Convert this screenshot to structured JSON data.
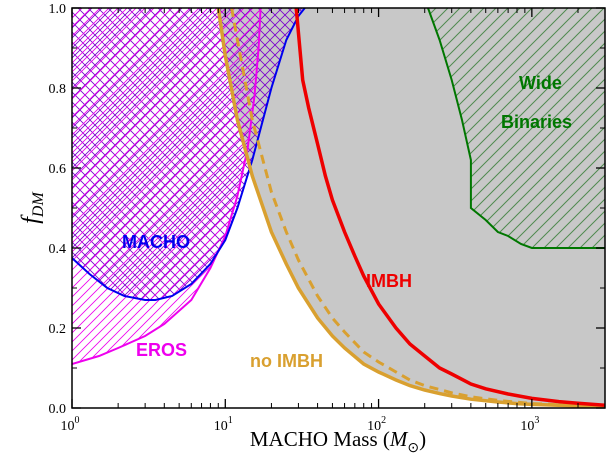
{
  "chart_data": {
    "type": "area",
    "xscale": "log",
    "xlim": [
      1,
      3000
    ],
    "ylim": [
      0,
      1.0
    ],
    "grid": false,
    "xlabel": {
      "prefix": "MACHO Mass (",
      "symbol": "M",
      "subscript": "⊙",
      "suffix": ")"
    },
    "ylabel": {
      "symbol": "f",
      "subscript": "DM"
    },
    "x_ticks": [
      {
        "value": 1,
        "base": "10",
        "exp": "0"
      },
      {
        "value": 10,
        "base": "10",
        "exp": "1"
      },
      {
        "value": 100,
        "base": "10",
        "exp": "2"
      },
      {
        "value": 1000,
        "base": "10",
        "exp": "3"
      }
    ],
    "y_ticks": [
      {
        "value": 0.0,
        "label": "0.0"
      },
      {
        "value": 0.2,
        "label": "0.2"
      },
      {
        "value": 0.4,
        "label": "0.4"
      },
      {
        "value": 0.6,
        "label": "0.6"
      },
      {
        "value": 0.8,
        "label": "0.8"
      },
      {
        "value": 1.0,
        "label": "1.0"
      }
    ],
    "series": [
      {
        "name": "MACHO",
        "color": "#0000ee",
        "style": "crosshatch",
        "x": [
          1,
          1.3,
          1.7,
          2.2,
          3,
          3.5,
          4.5,
          6,
          8,
          10,
          12,
          15,
          20,
          25,
          30,
          33
        ],
        "y": [
          0.375,
          0.335,
          0.3,
          0.28,
          0.27,
          0.27,
          0.28,
          0.31,
          0.36,
          0.42,
          0.5,
          0.62,
          0.8,
          0.92,
          0.98,
          1.0
        ]
      },
      {
        "name": "EROS",
        "color": "#ee00ee",
        "style": "hatch",
        "x": [
          1,
          1.5,
          2,
          3,
          4,
          6,
          8,
          10,
          12,
          14,
          15.5,
          16.5,
          17
        ],
        "y": [
          0.11,
          0.13,
          0.15,
          0.18,
          0.21,
          0.27,
          0.35,
          0.43,
          0.53,
          0.65,
          0.78,
          0.9,
          1.0
        ]
      },
      {
        "name": "IMBH",
        "color": "#ee0000",
        "style": "line",
        "x": [
          29,
          32,
          35,
          40,
          45,
          50,
          60,
          70,
          80,
          100,
          130,
          160,
          200,
          250,
          300,
          400,
          500,
          700,
          1000,
          1500,
          2000,
          3000
        ],
        "y": [
          1.0,
          0.82,
          0.75,
          0.66,
          0.58,
          0.52,
          0.44,
          0.38,
          0.33,
          0.26,
          0.2,
          0.16,
          0.13,
          0.1,
          0.085,
          0.06,
          0.048,
          0.035,
          0.024,
          0.016,
          0.012,
          0.007
        ]
      },
      {
        "name": "no IMBH",
        "color": "#d9a030",
        "style": "line",
        "x": [
          9,
          10,
          12,
          15,
          20,
          25,
          30,
          40,
          50,
          60,
          80,
          100,
          130,
          160,
          200,
          250,
          300,
          400,
          600,
          800,
          1000,
          3000
        ],
        "y": [
          1.0,
          0.88,
          0.72,
          0.58,
          0.44,
          0.36,
          0.3,
          0.225,
          0.18,
          0.15,
          0.11,
          0.09,
          0.07,
          0.056,
          0.045,
          0.036,
          0.03,
          0.022,
          0.015,
          0.011,
          0.009,
          0.003
        ]
      },
      {
        "color": "#d9a030",
        "style": "dashed",
        "x": [
          11,
          12,
          15,
          20,
          25,
          30,
          40,
          50,
          60,
          80,
          100,
          130,
          160,
          200,
          300,
          400,
          600,
          1000,
          2000,
          3000
        ],
        "y": [
          1.0,
          0.92,
          0.72,
          0.54,
          0.44,
          0.37,
          0.28,
          0.225,
          0.19,
          0.14,
          0.115,
          0.09,
          0.07,
          0.056,
          0.038,
          0.028,
          0.019,
          0.011,
          0.006,
          0.004
        ]
      },
      {
        "name": "Wide Binaries",
        "color": "#007700",
        "style": "hatch",
        "x": [
          210,
          250,
          300,
          350,
          400,
          400,
          500,
          600,
          700,
          850,
          1000,
          3000
        ],
        "y": [
          1.0,
          0.92,
          0.82,
          0.72,
          0.62,
          0.5,
          0.47,
          0.44,
          0.43,
          0.41,
          0.4,
          0.4
        ]
      }
    ],
    "labels": {
      "macho": "MACHO",
      "eros": "EROS",
      "imbh": "IMBH",
      "no_imbh": "no IMBH",
      "wide1": "Wide",
      "wide2": "Binaries"
    },
    "colors": {
      "dark_fill": "#999999",
      "light_fill": "#c8c8c8",
      "macho_hatch": "#7a00cc"
    }
  }
}
